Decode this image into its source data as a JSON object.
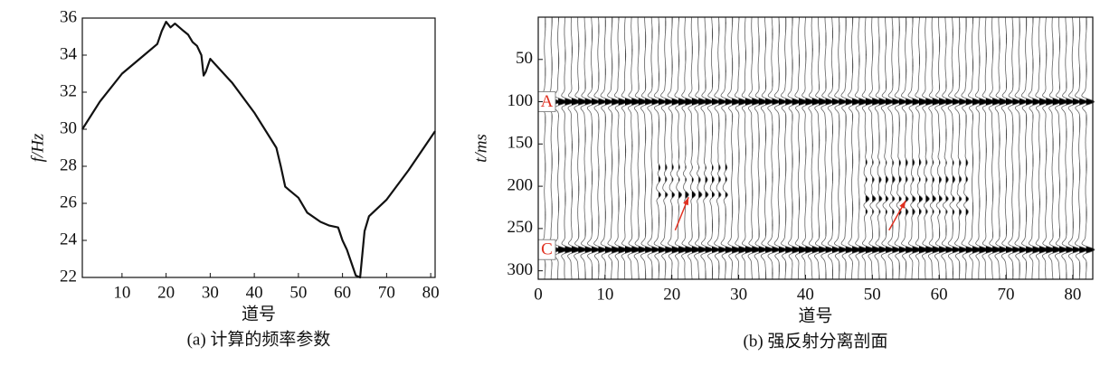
{
  "chart_data": [
    {
      "type": "line",
      "x_label": "道号",
      "y_label": "f/Hz",
      "caption": "(a) 计算的频率参数",
      "x": [
        1,
        5,
        10,
        15,
        18,
        19,
        20,
        21,
        22,
        24,
        25,
        26,
        27,
        28,
        28.5,
        29,
        30,
        35,
        40,
        45,
        46,
        47,
        48,
        50,
        52,
        55,
        57,
        59,
        60,
        61,
        62,
        63,
        64,
        65,
        66,
        70,
        75,
        81
      ],
      "values": [
        30.0,
        31.5,
        33.0,
        34.0,
        34.6,
        35.3,
        35.8,
        35.5,
        35.7,
        35.3,
        35.1,
        34.7,
        34.5,
        34.0,
        32.9,
        33.1,
        33.8,
        32.5,
        30.9,
        29.0,
        28.0,
        26.9,
        26.7,
        26.3,
        25.5,
        25.0,
        24.8,
        24.7,
        24.0,
        23.5,
        22.8,
        22.1,
        22.0,
        24.5,
        25.3,
        26.2,
        27.8,
        29.9
      ],
      "color": "#111111",
      "xlim": [
        1,
        81
      ],
      "xticks": [
        10,
        20,
        30,
        40,
        50,
        60,
        70,
        80
      ],
      "ylim": [
        22,
        36
      ],
      "yticks": [
        22,
        24,
        26,
        28,
        30,
        32,
        34,
        36
      ]
    },
    {
      "type": "wiggle",
      "x_label": "道号",
      "y_label": "t/ms",
      "caption": "(b) 强反射分离剖面",
      "traces": [
        1,
        82
      ],
      "y_inverted": true,
      "events": [
        {
          "t": 100,
          "amplitude": 1.7,
          "traces": [
            1,
            82
          ]
        },
        {
          "t": 275,
          "amplitude": 1.7,
          "traces": [
            1,
            82
          ]
        },
        {
          "t": 178,
          "amplitude": 0.25,
          "traces": [
            18,
            28
          ]
        },
        {
          "t": 192,
          "amplitude": 0.35,
          "traces": [
            18,
            28
          ]
        },
        {
          "t": 210,
          "amplitude": 0.6,
          "traces": [
            18,
            28
          ]
        },
        {
          "t": 172,
          "amplitude": 0.3,
          "traces": [
            49,
            64
          ]
        },
        {
          "t": 192,
          "amplitude": 0.4,
          "traces": [
            49,
            64
          ]
        },
        {
          "t": 215,
          "amplitude": 0.6,
          "traces": [
            49,
            64
          ]
        },
        {
          "t": 230,
          "amplitude": 0.4,
          "traces": [
            49,
            64
          ]
        }
      ],
      "markers": [
        {
          "label": "A",
          "t": 100
        },
        {
          "label": "C",
          "t": 275
        }
      ],
      "arrows": [
        {
          "from": [
            20.5,
            252
          ],
          "to": [
            22.5,
            213
          ]
        },
        {
          "from": [
            52.5,
            252
          ],
          "to": [
            55,
            217
          ]
        }
      ],
      "arrow_color": "#e03020",
      "marker_color": "#e03020",
      "xlim": [
        0,
        83
      ],
      "xticks": [
        0,
        10,
        20,
        30,
        40,
        50,
        60,
        70,
        80
      ],
      "ylim": [
        0,
        310
      ],
      "yticks": [
        50,
        100,
        150,
        200,
        250,
        300
      ]
    }
  ]
}
